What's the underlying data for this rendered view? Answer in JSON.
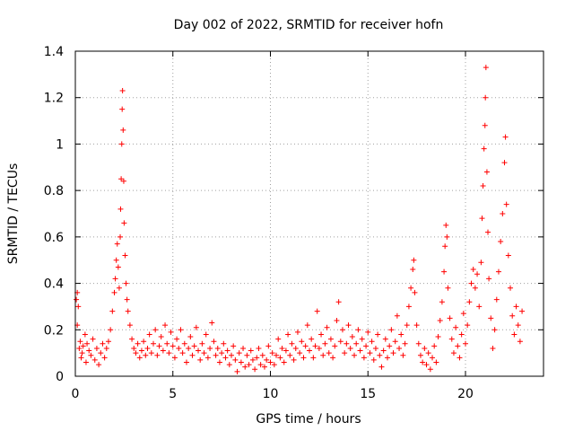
{
  "chart_data": {
    "type": "scatter",
    "title": "Day 002 of 2022, SRMTID for receiver hofn",
    "xlabel": "GPS time / hours",
    "ylabel": "SRMTID / TECUs",
    "xlim": [
      0,
      24
    ],
    "ylim": [
      0,
      1.4
    ],
    "x_ticks": [
      0,
      5,
      10,
      15,
      20
    ],
    "x_tick_labels": [
      "0",
      "5",
      "10",
      "15",
      "20"
    ],
    "y_ticks": [
      0,
      0.2,
      0.4,
      0.6,
      0.8,
      1.0,
      1.2,
      1.4
    ],
    "y_tick_labels": [
      "0",
      "0.2",
      "0.4",
      "0.6",
      "0.8",
      "1",
      "1.2",
      "1.4"
    ],
    "grid": true,
    "marker": "+",
    "marker_color": "#ff0000",
    "series": [
      {
        "name": "SRMTID",
        "points": [
          [
            0.05,
            0.33
          ],
          [
            0.1,
            0.36
          ],
          [
            0.1,
            0.22
          ],
          [
            0.15,
            0.3
          ],
          [
            0.2,
            0.12
          ],
          [
            0.25,
            0.15
          ],
          [
            0.3,
            0.08
          ],
          [
            0.35,
            0.1
          ],
          [
            0.4,
            0.13
          ],
          [
            0.5,
            0.18
          ],
          [
            0.55,
            0.06
          ],
          [
            0.6,
            0.14
          ],
          [
            0.7,
            0.11
          ],
          [
            0.8,
            0.09
          ],
          [
            0.9,
            0.16
          ],
          [
            1.0,
            0.07
          ],
          [
            1.1,
            0.12
          ],
          [
            1.2,
            0.05
          ],
          [
            1.3,
            0.1
          ],
          [
            1.4,
            0.14
          ],
          [
            1.5,
            0.08
          ],
          [
            1.6,
            0.12
          ],
          [
            1.7,
            0.15
          ],
          [
            1.8,
            0.2
          ],
          [
            1.9,
            0.28
          ],
          [
            2.0,
            0.36
          ],
          [
            2.05,
            0.42
          ],
          [
            2.1,
            0.5
          ],
          [
            2.15,
            0.57
          ],
          [
            2.2,
            0.47
          ],
          [
            2.25,
            0.38
          ],
          [
            2.3,
            0.6
          ],
          [
            2.32,
            0.72
          ],
          [
            2.35,
            0.85
          ],
          [
            2.38,
            1.0
          ],
          [
            2.4,
            1.15
          ],
          [
            2.42,
            1.23
          ],
          [
            2.45,
            1.06
          ],
          [
            2.48,
            0.84
          ],
          [
            2.5,
            0.66
          ],
          [
            2.55,
            0.52
          ],
          [
            2.6,
            0.4
          ],
          [
            2.65,
            0.33
          ],
          [
            2.7,
            0.28
          ],
          [
            2.8,
            0.22
          ],
          [
            2.9,
            0.16
          ],
          [
            3.0,
            0.12
          ],
          [
            3.1,
            0.1
          ],
          [
            3.2,
            0.14
          ],
          [
            3.3,
            0.08
          ],
          [
            3.4,
            0.11
          ],
          [
            3.5,
            0.15
          ],
          [
            3.6,
            0.09
          ],
          [
            3.7,
            0.12
          ],
          [
            3.8,
            0.18
          ],
          [
            3.9,
            0.1
          ],
          [
            4.0,
            0.14
          ],
          [
            4.1,
            0.2
          ],
          [
            4.2,
            0.09
          ],
          [
            4.3,
            0.13
          ],
          [
            4.4,
            0.17
          ],
          [
            4.5,
            0.11
          ],
          [
            4.6,
            0.22
          ],
          [
            4.7,
            0.14
          ],
          [
            4.8,
            0.1
          ],
          [
            4.9,
            0.19
          ],
          [
            5.0,
            0.13
          ],
          [
            5.1,
            0.08
          ],
          [
            5.2,
            0.16
          ],
          [
            5.3,
            0.12
          ],
          [
            5.4,
            0.2
          ],
          [
            5.5,
            0.1
          ],
          [
            5.6,
            0.14
          ],
          [
            5.7,
            0.06
          ],
          [
            5.8,
            0.12
          ],
          [
            5.9,
            0.17
          ],
          [
            6.0,
            0.09
          ],
          [
            6.1,
            0.13
          ],
          [
            6.2,
            0.21
          ],
          [
            6.3,
            0.11
          ],
          [
            6.4,
            0.07
          ],
          [
            6.5,
            0.14
          ],
          [
            6.6,
            0.1
          ],
          [
            6.7,
            0.18
          ],
          [
            6.8,
            0.08
          ],
          [
            6.9,
            0.12
          ],
          [
            7.0,
            0.23
          ],
          [
            7.1,
            0.15
          ],
          [
            7.2,
            0.09
          ],
          [
            7.3,
            0.12
          ],
          [
            7.4,
            0.06
          ],
          [
            7.5,
            0.1
          ],
          [
            7.6,
            0.14
          ],
          [
            7.7,
            0.08
          ],
          [
            7.8,
            0.11
          ],
          [
            7.9,
            0.05
          ],
          [
            8.0,
            0.09
          ],
          [
            8.1,
            0.13
          ],
          [
            8.2,
            0.07
          ],
          [
            8.3,
            0.02
          ],
          [
            8.4,
            0.1
          ],
          [
            8.5,
            0.06
          ],
          [
            8.6,
            0.12
          ],
          [
            8.7,
            0.04
          ],
          [
            8.8,
            0.09
          ],
          [
            8.9,
            0.05
          ],
          [
            9.0,
            0.11
          ],
          [
            9.1,
            0.07
          ],
          [
            9.2,
            0.03
          ],
          [
            9.3,
            0.08
          ],
          [
            9.4,
            0.12
          ],
          [
            9.5,
            0.05
          ],
          [
            9.6,
            0.09
          ],
          [
            9.7,
            0.04
          ],
          [
            9.8,
            0.07
          ],
          [
            9.9,
            0.13
          ],
          [
            10.0,
            0.06
          ],
          [
            10.1,
            0.1
          ],
          [
            10.2,
            0.05
          ],
          [
            10.3,
            0.09
          ],
          [
            10.4,
            0.16
          ],
          [
            10.5,
            0.08
          ],
          [
            10.6,
            0.12
          ],
          [
            10.7,
            0.06
          ],
          [
            10.8,
            0.11
          ],
          [
            10.9,
            0.18
          ],
          [
            11.0,
            0.09
          ],
          [
            11.1,
            0.14
          ],
          [
            11.2,
            0.07
          ],
          [
            11.3,
            0.12
          ],
          [
            11.4,
            0.19
          ],
          [
            11.5,
            0.1
          ],
          [
            11.6,
            0.15
          ],
          [
            11.7,
            0.08
          ],
          [
            11.8,
            0.13
          ],
          [
            11.9,
            0.22
          ],
          [
            12.0,
            0.11
          ],
          [
            12.1,
            0.16
          ],
          [
            12.2,
            0.08
          ],
          [
            12.3,
            0.13
          ],
          [
            12.4,
            0.28
          ],
          [
            12.5,
            0.12
          ],
          [
            12.6,
            0.18
          ],
          [
            12.7,
            0.09
          ],
          [
            12.8,
            0.14
          ],
          [
            12.9,
            0.21
          ],
          [
            13.0,
            0.1
          ],
          [
            13.1,
            0.16
          ],
          [
            13.2,
            0.08
          ],
          [
            13.3,
            0.13
          ],
          [
            13.4,
            0.24
          ],
          [
            13.5,
            0.32
          ],
          [
            13.6,
            0.15
          ],
          [
            13.7,
            0.2
          ],
          [
            13.8,
            0.1
          ],
          [
            13.9,
            0.14
          ],
          [
            14.0,
            0.22
          ],
          [
            14.1,
            0.12
          ],
          [
            14.2,
            0.17
          ],
          [
            14.3,
            0.09
          ],
          [
            14.4,
            0.14
          ],
          [
            14.5,
            0.2
          ],
          [
            14.6,
            0.11
          ],
          [
            14.7,
            0.16
          ],
          [
            14.8,
            0.08
          ],
          [
            14.9,
            0.13
          ],
          [
            15.0,
            0.19
          ],
          [
            15.1,
            0.1
          ],
          [
            15.2,
            0.15
          ],
          [
            15.3,
            0.07
          ],
          [
            15.4,
            0.12
          ],
          [
            15.5,
            0.18
          ],
          [
            15.6,
            0.09
          ],
          [
            15.7,
            0.04
          ],
          [
            15.8,
            0.11
          ],
          [
            15.9,
            0.16
          ],
          [
            16.0,
            0.08
          ],
          [
            16.1,
            0.13
          ],
          [
            16.2,
            0.2
          ],
          [
            16.3,
            0.1
          ],
          [
            16.4,
            0.15
          ],
          [
            16.5,
            0.26
          ],
          [
            16.6,
            0.12
          ],
          [
            16.7,
            0.18
          ],
          [
            16.8,
            0.09
          ],
          [
            16.9,
            0.14
          ],
          [
            17.0,
            0.22
          ],
          [
            17.1,
            0.3
          ],
          [
            17.2,
            0.38
          ],
          [
            17.3,
            0.46
          ],
          [
            17.35,
            0.5
          ],
          [
            17.4,
            0.36
          ],
          [
            17.5,
            0.22
          ],
          [
            17.6,
            0.14
          ],
          [
            17.7,
            0.09
          ],
          [
            17.8,
            0.06
          ],
          [
            17.9,
            0.12
          ],
          [
            18.0,
            0.05
          ],
          [
            18.1,
            0.1
          ],
          [
            18.2,
            0.03
          ],
          [
            18.3,
            0.08
          ],
          [
            18.4,
            0.13
          ],
          [
            18.5,
            0.06
          ],
          [
            18.6,
            0.17
          ],
          [
            18.7,
            0.24
          ],
          [
            18.8,
            0.32
          ],
          [
            18.9,
            0.45
          ],
          [
            18.95,
            0.56
          ],
          [
            19.0,
            0.65
          ],
          [
            19.05,
            0.6
          ],
          [
            19.1,
            0.38
          ],
          [
            19.2,
            0.25
          ],
          [
            19.3,
            0.16
          ],
          [
            19.4,
            0.1
          ],
          [
            19.5,
            0.21
          ],
          [
            19.6,
            0.13
          ],
          [
            19.7,
            0.08
          ],
          [
            19.8,
            0.18
          ],
          [
            19.9,
            0.27
          ],
          [
            20.0,
            0.14
          ],
          [
            20.1,
            0.22
          ],
          [
            20.2,
            0.32
          ],
          [
            20.3,
            0.4
          ],
          [
            20.4,
            0.46
          ],
          [
            20.5,
            0.38
          ],
          [
            20.6,
            0.44
          ],
          [
            20.7,
            0.3
          ],
          [
            20.8,
            0.49
          ],
          [
            20.85,
            0.68
          ],
          [
            20.9,
            0.82
          ],
          [
            20.95,
            0.98
          ],
          [
            21.0,
            1.08
          ],
          [
            21.02,
            1.2
          ],
          [
            21.05,
            1.33
          ],
          [
            21.1,
            0.88
          ],
          [
            21.15,
            0.62
          ],
          [
            21.2,
            0.42
          ],
          [
            21.3,
            0.25
          ],
          [
            21.4,
            0.12
          ],
          [
            21.5,
            0.2
          ],
          [
            21.6,
            0.33
          ],
          [
            21.7,
            0.45
          ],
          [
            21.8,
            0.58
          ],
          [
            21.9,
            0.7
          ],
          [
            22.0,
            0.92
          ],
          [
            22.05,
            1.03
          ],
          [
            22.1,
            0.74
          ],
          [
            22.2,
            0.52
          ],
          [
            22.3,
            0.38
          ],
          [
            22.4,
            0.26
          ],
          [
            22.5,
            0.18
          ],
          [
            22.6,
            0.3
          ],
          [
            22.7,
            0.22
          ],
          [
            22.8,
            0.15
          ],
          [
            22.9,
            0.28
          ]
        ]
      }
    ]
  }
}
